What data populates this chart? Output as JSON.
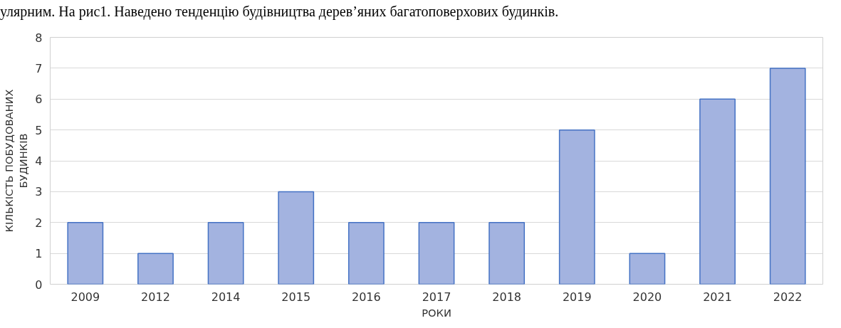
{
  "chart_data": {
    "type": "bar",
    "annotations": [
      "улярним. На рис1. Наведено тенденцію будівництва дерев’яних багатоповерхових будинків."
    ],
    "xlabel": "РОКИ",
    "ylabel": "КІЛЬКІСТЬ ПОБУДОВАНИХ\nБУДИНКІВ",
    "categories": [
      "2009",
      "2012",
      "2014",
      "2015",
      "2016",
      "2017",
      "2018",
      "2019",
      "2020",
      "2021",
      "2022"
    ],
    "values": [
      2,
      1,
      2,
      3,
      2,
      2,
      2,
      5,
      1,
      6,
      7
    ],
    "color": "#a3b3e0",
    "ylim": [
      0,
      8
    ],
    "yticks": [
      0,
      1,
      2,
      3,
      4,
      5,
      6,
      7,
      8
    ],
    "grid": "y"
  }
}
